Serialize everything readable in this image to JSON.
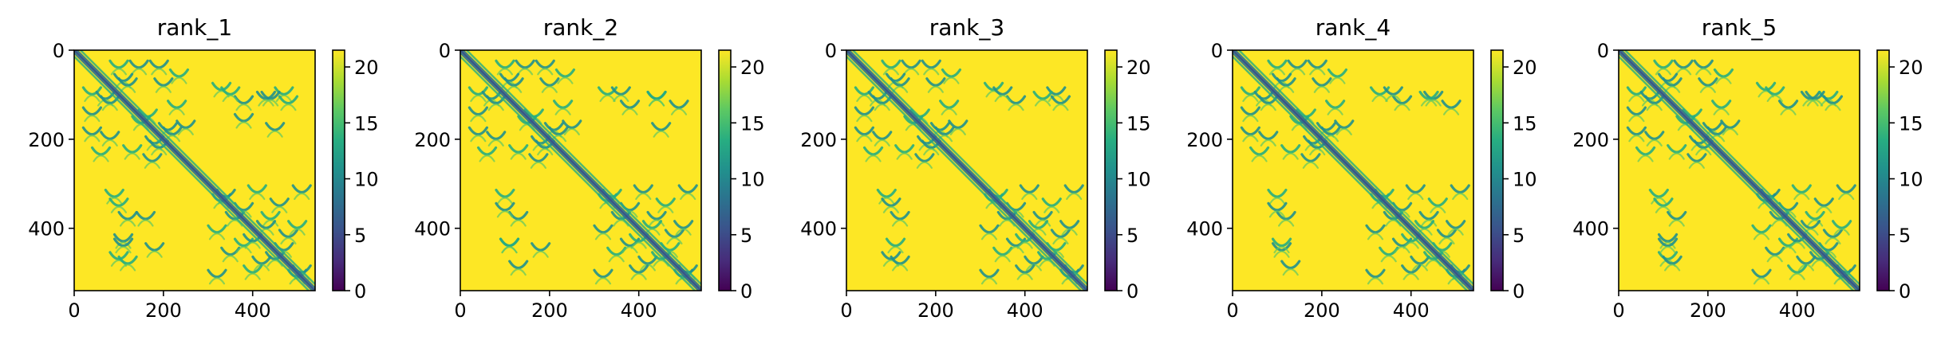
{
  "chart_data": [
    {
      "type": "heatmap",
      "title": "rank_1",
      "xlabel": "",
      "ylabel": "",
      "xlim": [
        0,
        540
      ],
      "ylim": [
        540,
        0
      ],
      "x_ticks": [
        0,
        200,
        400
      ],
      "y_ticks": [
        0,
        200,
        400
      ],
      "colorbar": {
        "range": [
          0,
          21.5
        ],
        "ticks": [
          0,
          5,
          10,
          15,
          20
        ],
        "colormap": "viridis"
      },
      "diagonal_band": [
        [
          0,
          0
        ],
        [
          540,
          540
        ]
      ],
      "contact_arcs": [
        {
          "x": 100,
          "y": 40
        },
        {
          "x": 145,
          "y": 40
        },
        {
          "x": 190,
          "y": 40
        },
        {
          "x": 235,
          "y": 60
        },
        {
          "x": 70,
          "y": 110
        },
        {
          "x": 120,
          "y": 80
        },
        {
          "x": 165,
          "y": 150
        },
        {
          "x": 210,
          "y": 180
        },
        {
          "x": 80,
          "y": 200
        },
        {
          "x": 130,
          "y": 230
        },
        {
          "x": 175,
          "y": 250
        },
        {
          "x": 220,
          "y": 190
        },
        {
          "x": 330,
          "y": 90
        },
        {
          "x": 380,
          "y": 120
        },
        {
          "x": 430,
          "y": 110
        },
        {
          "x": 470,
          "y": 100
        },
        {
          "x": 330,
          "y": 340
        },
        {
          "x": 360,
          "y": 380
        },
        {
          "x": 410,
          "y": 320
        },
        {
          "x": 460,
          "y": 350
        },
        {
          "x": 510,
          "y": 320
        },
        {
          "x": 380,
          "y": 440
        },
        {
          "x": 430,
          "y": 400
        },
        {
          "x": 480,
          "y": 420
        },
        {
          "x": 400,
          "y": 500
        },
        {
          "x": 450,
          "y": 470
        },
        {
          "x": 500,
          "y": 510
        },
        {
          "x": 100,
          "y": 350
        },
        {
          "x": 160,
          "y": 380
        },
        {
          "x": 110,
          "y": 440
        },
        {
          "x": 120,
          "y": 480
        },
        {
          "x": 180,
          "y": 450
        }
      ]
    },
    {
      "type": "heatmap",
      "title": "rank_2",
      "xlabel": "",
      "ylabel": "",
      "xlim": [
        0,
        540
      ],
      "ylim": [
        540,
        0
      ],
      "x_ticks": [
        0,
        200,
        400
      ],
      "y_ticks": [
        0,
        200,
        400
      ],
      "colorbar": {
        "range": [
          0,
          21.5
        ],
        "ticks": [
          0,
          5,
          10,
          15,
          20
        ],
        "colormap": "viridis"
      },
      "diagonal_band": [
        [
          0,
          0
        ],
        [
          540,
          540
        ]
      ],
      "contact_arcs": [
        {
          "x": 100,
          "y": 40
        },
        {
          "x": 145,
          "y": 40
        },
        {
          "x": 190,
          "y": 40
        },
        {
          "x": 235,
          "y": 60
        },
        {
          "x": 70,
          "y": 110
        },
        {
          "x": 120,
          "y": 80
        },
        {
          "x": 165,
          "y": 150
        },
        {
          "x": 210,
          "y": 180
        },
        {
          "x": 80,
          "y": 200
        },
        {
          "x": 130,
          "y": 230
        },
        {
          "x": 175,
          "y": 250
        },
        {
          "x": 220,
          "y": 190
        },
        {
          "x": 330,
          "y": 100
        },
        {
          "x": 380,
          "y": 130
        },
        {
          "x": 440,
          "y": 110
        },
        {
          "x": 330,
          "y": 340
        },
        {
          "x": 360,
          "y": 380
        },
        {
          "x": 410,
          "y": 320
        },
        {
          "x": 460,
          "y": 350
        },
        {
          "x": 510,
          "y": 320
        },
        {
          "x": 380,
          "y": 440
        },
        {
          "x": 430,
          "y": 400
        },
        {
          "x": 480,
          "y": 420
        },
        {
          "x": 400,
          "y": 500
        },
        {
          "x": 450,
          "y": 470
        },
        {
          "x": 500,
          "y": 510
        },
        {
          "x": 100,
          "y": 360
        },
        {
          "x": 110,
          "y": 440
        },
        {
          "x": 130,
          "y": 490
        },
        {
          "x": 180,
          "y": 450
        }
      ]
    },
    {
      "type": "heatmap",
      "title": "rank_3",
      "xlabel": "",
      "ylabel": "",
      "xlim": [
        0,
        540
      ],
      "ylim": [
        540,
        0
      ],
      "x_ticks": [
        0,
        200,
        400
      ],
      "y_ticks": [
        0,
        200,
        400
      ],
      "colorbar": {
        "range": [
          0,
          21.5
        ],
        "ticks": [
          0,
          5,
          10,
          15,
          20
        ],
        "colormap": "viridis"
      },
      "diagonal_band": [
        [
          0,
          0
        ],
        [
          540,
          540
        ]
      ],
      "contact_arcs": [
        {
          "x": 100,
          "y": 40
        },
        {
          "x": 145,
          "y": 40
        },
        {
          "x": 190,
          "y": 40
        },
        {
          "x": 235,
          "y": 60
        },
        {
          "x": 70,
          "y": 110
        },
        {
          "x": 120,
          "y": 80
        },
        {
          "x": 165,
          "y": 150
        },
        {
          "x": 210,
          "y": 180
        },
        {
          "x": 80,
          "y": 200
        },
        {
          "x": 130,
          "y": 230
        },
        {
          "x": 175,
          "y": 250
        },
        {
          "x": 220,
          "y": 190
        },
        {
          "x": 330,
          "y": 90
        },
        {
          "x": 380,
          "y": 120
        },
        {
          "x": 470,
          "y": 100
        },
        {
          "x": 330,
          "y": 340
        },
        {
          "x": 360,
          "y": 380
        },
        {
          "x": 410,
          "y": 320
        },
        {
          "x": 460,
          "y": 350
        },
        {
          "x": 510,
          "y": 320
        },
        {
          "x": 380,
          "y": 440
        },
        {
          "x": 430,
          "y": 400
        },
        {
          "x": 480,
          "y": 420
        },
        {
          "x": 400,
          "y": 500
        },
        {
          "x": 450,
          "y": 470
        },
        {
          "x": 500,
          "y": 510
        },
        {
          "x": 100,
          "y": 350
        },
        {
          "x": 110,
          "y": 440
        },
        {
          "x": 120,
          "y": 480
        }
      ]
    },
    {
      "type": "heatmap",
      "title": "rank_4",
      "xlabel": "",
      "ylabel": "",
      "xlim": [
        0,
        540
      ],
      "ylim": [
        540,
        0
      ],
      "x_ticks": [
        0,
        200,
        400
      ],
      "y_ticks": [
        0,
        200,
        400
      ],
      "colorbar": {
        "range": [
          0,
          21.5
        ],
        "ticks": [
          0,
          5,
          10,
          15,
          20
        ],
        "colormap": "viridis"
      },
      "diagonal_band": [
        [
          0,
          0
        ],
        [
          540,
          540
        ]
      ],
      "contact_arcs": [
        {
          "x": 100,
          "y": 40
        },
        {
          "x": 145,
          "y": 40
        },
        {
          "x": 190,
          "y": 40
        },
        {
          "x": 235,
          "y": 60
        },
        {
          "x": 70,
          "y": 110
        },
        {
          "x": 120,
          "y": 80
        },
        {
          "x": 165,
          "y": 150
        },
        {
          "x": 210,
          "y": 180
        },
        {
          "x": 80,
          "y": 200
        },
        {
          "x": 130,
          "y": 230
        },
        {
          "x": 175,
          "y": 250
        },
        {
          "x": 220,
          "y": 190
        },
        {
          "x": 330,
          "y": 100
        },
        {
          "x": 380,
          "y": 120
        },
        {
          "x": 450,
          "y": 110
        },
        {
          "x": 330,
          "y": 340
        },
        {
          "x": 360,
          "y": 380
        },
        {
          "x": 410,
          "y": 320
        },
        {
          "x": 460,
          "y": 350
        },
        {
          "x": 510,
          "y": 320
        },
        {
          "x": 380,
          "y": 440
        },
        {
          "x": 430,
          "y": 400
        },
        {
          "x": 480,
          "y": 420
        },
        {
          "x": 400,
          "y": 500
        },
        {
          "x": 450,
          "y": 470
        },
        {
          "x": 500,
          "y": 510
        },
        {
          "x": 100,
          "y": 360
        },
        {
          "x": 110,
          "y": 440
        },
        {
          "x": 130,
          "y": 490
        }
      ]
    },
    {
      "type": "heatmap",
      "title": "rank_5",
      "xlabel": "",
      "ylabel": "",
      "xlim": [
        0,
        540
      ],
      "ylim": [
        540,
        0
      ],
      "x_ticks": [
        0,
        200,
        400
      ],
      "y_ticks": [
        0,
        200,
        400
      ],
      "colorbar": {
        "range": [
          0,
          21.5
        ],
        "ticks": [
          0,
          5,
          10,
          15,
          20
        ],
        "colormap": "viridis"
      },
      "diagonal_band": [
        [
          0,
          0
        ],
        [
          540,
          540
        ]
      ],
      "contact_arcs": [
        {
          "x": 100,
          "y": 40
        },
        {
          "x": 145,
          "y": 40
        },
        {
          "x": 190,
          "y": 40
        },
        {
          "x": 235,
          "y": 60
        },
        {
          "x": 70,
          "y": 110
        },
        {
          "x": 120,
          "y": 80
        },
        {
          "x": 165,
          "y": 150
        },
        {
          "x": 210,
          "y": 180
        },
        {
          "x": 80,
          "y": 200
        },
        {
          "x": 130,
          "y": 230
        },
        {
          "x": 175,
          "y": 250
        },
        {
          "x": 220,
          "y": 190
        },
        {
          "x": 330,
          "y": 90
        },
        {
          "x": 380,
          "y": 130
        },
        {
          "x": 430,
          "y": 110
        },
        {
          "x": 470,
          "y": 110
        },
        {
          "x": 330,
          "y": 340
        },
        {
          "x": 360,
          "y": 380
        },
        {
          "x": 410,
          "y": 320
        },
        {
          "x": 460,
          "y": 350
        },
        {
          "x": 510,
          "y": 320
        },
        {
          "x": 380,
          "y": 440
        },
        {
          "x": 430,
          "y": 400
        },
        {
          "x": 480,
          "y": 420
        },
        {
          "x": 400,
          "y": 500
        },
        {
          "x": 450,
          "y": 470
        },
        {
          "x": 500,
          "y": 510
        },
        {
          "x": 100,
          "y": 350
        },
        {
          "x": 110,
          "y": 440
        },
        {
          "x": 120,
          "y": 480
        }
      ]
    }
  ]
}
